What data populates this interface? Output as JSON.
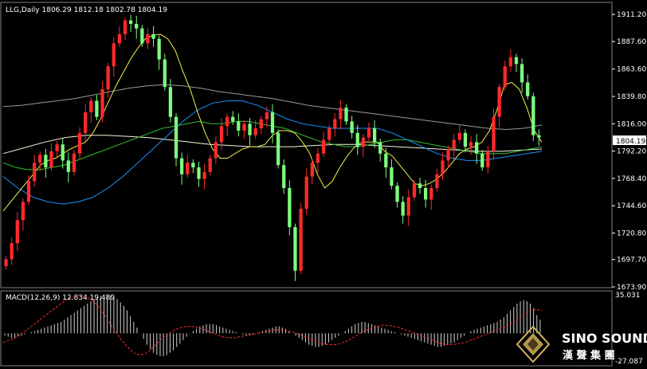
{
  "chart_data": [
    {
      "type": "candlestick",
      "header": "LLG,Daily  1806.29 1812.18 1802.78 1804.19",
      "current_price": {
        "value": 1804.19,
        "label": "1804.19"
      },
      "y_ticks": [
        1911.2,
        1887.6,
        1863.6,
        1839.8,
        1816.0,
        1792.2,
        1768.4,
        1744.6,
        1720.8,
        1697.7,
        1673.9
      ],
      "y_tick_labels": [
        "1911.20",
        "1887.60",
        "1863.60",
        "1839.80",
        "1816.00",
        "1792.20",
        "1768.40",
        "1744.60",
        "1720.80",
        "1697.70",
        "1673.90"
      ],
      "ylim": [
        1673.9,
        1921.0
      ],
      "grid": false,
      "colors": {
        "up": "#ff2a2a",
        "down": "#7dff7d",
        "ma_yellow": "#f0f04a",
        "ma_green": "#2fbf2f",
        "ma_blue": "#1e90ff",
        "ma_white": "#f5f5dc",
        "ma_gray": "#9a9a9a"
      },
      "close_path": [
        1698,
        1712,
        1732,
        1748,
        1766,
        1782,
        1789,
        1778,
        1792,
        1798,
        1784,
        1774,
        1790,
        1808,
        1826,
        1836,
        1822,
        1846,
        1866,
        1886,
        1894,
        1906,
        1903,
        1899,
        1886,
        1894,
        1890,
        1872,
        1848,
        1822,
        1786,
        1772,
        1782,
        1778,
        1768,
        1774,
        1786,
        1800,
        1814,
        1822,
        1818,
        1810,
        1816,
        1806,
        1812,
        1820,
        1826,
        1808,
        1780,
        1760,
        1726,
        1688,
        1742,
        1770,
        1782,
        1790,
        1802,
        1812,
        1820,
        1830,
        1818,
        1808,
        1796,
        1804,
        1812,
        1800,
        1790,
        1778,
        1762,
        1748,
        1736,
        1752,
        1764,
        1760,
        1750,
        1760,
        1772,
        1784,
        1794,
        1802,
        1808,
        1796,
        1800,
        1790,
        1778,
        1792,
        1822,
        1848,
        1866,
        1874,
        1868,
        1852,
        1840,
        1806,
        1804
      ],
      "ma_yellow": [
        1740,
        1748,
        1756,
        1764,
        1772,
        1780,
        1784,
        1786,
        1790,
        1794,
        1797,
        1800,
        1808,
        1820,
        1834,
        1848,
        1860,
        1872,
        1882,
        1890,
        1893,
        1894,
        1890,
        1880,
        1862,
        1846,
        1826,
        1808,
        1794,
        1786,
        1786,
        1790,
        1794,
        1796,
        1796,
        1798,
        1806,
        1810,
        1810,
        1808,
        1800,
        1790,
        1772,
        1760,
        1766,
        1778,
        1788,
        1796,
        1800,
        1800,
        1800,
        1792,
        1788,
        1780,
        1772,
        1764,
        1762,
        1764,
        1768,
        1774,
        1782,
        1790,
        1794,
        1796,
        1800,
        1810,
        1828,
        1850,
        1852,
        1846,
        1830,
        1810,
        1800
      ],
      "ma_green": [
        1782,
        1778,
        1776,
        1776,
        1778,
        1780,
        1784,
        1788,
        1792,
        1796,
        1800,
        1804,
        1808,
        1812,
        1814,
        1816,
        1818,
        1816,
        1816,
        1818,
        1818,
        1816,
        1814,
        1812,
        1808,
        1804,
        1800,
        1798,
        1796,
        1796,
        1798,
        1800,
        1802,
        1802,
        1800,
        1798,
        1796,
        1794,
        1792,
        1790,
        1790,
        1790,
        1792,
        1794,
        1796
      ],
      "ma_blue": [
        1770,
        1760,
        1752,
        1748,
        1746,
        1748,
        1752,
        1760,
        1770,
        1782,
        1794,
        1806,
        1818,
        1828,
        1834,
        1836,
        1836,
        1832,
        1826,
        1820,
        1816,
        1814,
        1812,
        1812,
        1812,
        1812,
        1808,
        1802,
        1796,
        1790,
        1786,
        1784,
        1784,
        1786,
        1788,
        1790,
        1792
      ],
      "ma_white": [
        1790,
        1795,
        1800,
        1804,
        1806,
        1806,
        1805,
        1804,
        1802,
        1800,
        1798,
        1797,
        1796,
        1796,
        1796,
        1797,
        1798,
        1798,
        1797,
        1796,
        1795,
        1794,
        1793,
        1792,
        1792,
        1793,
        1794
      ],
      "ma_gray": [
        1831,
        1832,
        1834,
        1836,
        1838,
        1841,
        1844,
        1847,
        1849,
        1850,
        1849,
        1847,
        1844,
        1842,
        1840,
        1838,
        1835,
        1832,
        1830,
        1828,
        1826,
        1824,
        1822,
        1820,
        1818,
        1816,
        1814,
        1812,
        1811,
        1812,
        1815
      ]
    },
    {
      "type": "macd",
      "label": "MACD(12,26,9) 12.834 19.489",
      "y_tick_labels": [
        "35.031",
        "-27.087"
      ],
      "ylim": [
        -27.087,
        35.031
      ],
      "histogram": [
        -2,
        -3,
        -4,
        -4,
        -3,
        -2,
        -1,
        0,
        1,
        2,
        3,
        4,
        5,
        6,
        7,
        8,
        9,
        10,
        12,
        14,
        16,
        18,
        20,
        22,
        24,
        26,
        28,
        30,
        32,
        33,
        34,
        34,
        33,
        32,
        30,
        27,
        24,
        20,
        15,
        10,
        5,
        0,
        -5,
        -10,
        -14,
        -17,
        -19,
        -20,
        -20,
        -19,
        -17,
        -15,
        -12,
        -9,
        -6,
        -3,
        0,
        2,
        4,
        6,
        7,
        8,
        8,
        8,
        7,
        6,
        5,
        4,
        3,
        2,
        1,
        0,
        -1,
        -2,
        -2,
        -1,
        0,
        1,
        2,
        3,
        4,
        5,
        6,
        6,
        5,
        4,
        2,
        0,
        -2,
        -4,
        -6,
        -8,
        -10,
        -11,
        -12,
        -12,
        -11,
        -10,
        -8,
        -6,
        -4,
        -2,
        0,
        2,
        4,
        6,
        8,
        9,
        10,
        10,
        9,
        8,
        7,
        6,
        5,
        4,
        3,
        2,
        1,
        0,
        -1,
        -2,
        -3,
        -4,
        -5,
        -6,
        -7,
        -8,
        -9,
        -10,
        -11,
        -12,
        -12,
        -11,
        -10,
        -9,
        -8,
        -6,
        -4,
        -2,
        0,
        2,
        3,
        4,
        5,
        6,
        7,
        8,
        9,
        10,
        12,
        14,
        17,
        20,
        23,
        26,
        28,
        29,
        28,
        26,
        22,
        16,
        12
      ],
      "signal": [
        -8,
        -6,
        -4,
        -1,
        3,
        7,
        11,
        15,
        19,
        23,
        27,
        30,
        32,
        33,
        32,
        29,
        24,
        17,
        9,
        1,
        -6,
        -12,
        -17,
        -19,
        -18,
        -14,
        -9,
        -4,
        0,
        3,
        5,
        6,
        6,
        5,
        3,
        1,
        -1,
        -3,
        -4,
        -4,
        -3,
        -2,
        -1,
        0,
        1,
        2,
        3,
        3,
        2,
        1,
        -1,
        -3,
        -5,
        -7,
        -9,
        -10,
        -10,
        -9,
        -7,
        -4,
        -1,
        2,
        4,
        6,
        7,
        7,
        6,
        5,
        3,
        1,
        -1,
        -3,
        -5,
        -7,
        -9,
        -10,
        -10,
        -9,
        -8,
        -6,
        -4,
        -2,
        0,
        2,
        4,
        6,
        9,
        13,
        17,
        20,
        21,
        20
      ]
    }
  ],
  "branding": {
    "logo_text": "SINO SOUND",
    "logo_cn": "漢 聲 集 團",
    "accent": "#d4b25a"
  }
}
